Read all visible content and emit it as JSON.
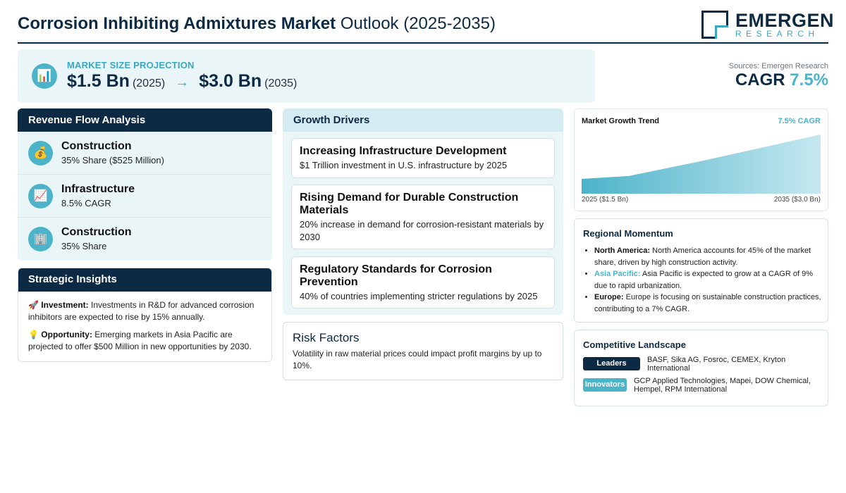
{
  "header": {
    "title_bold": "Corrosion Inhibiting Admixtures Market",
    "title_rest": "Outlook (2025-2035)",
    "logo_word": "EMERGEN",
    "logo_sub": "RESEARCH"
  },
  "projection": {
    "label": "MARKET SIZE PROJECTION",
    "start_value": "$1.5 Bn",
    "start_year": "(2025)",
    "arrow": "→",
    "end_value": "$3.0 Bn",
    "end_year": "(2035)",
    "icon": "bar-chart-icon"
  },
  "sources": "Sources: Emergen Research",
  "cagr": {
    "label": "CAGR",
    "value": "7.5%"
  },
  "revenue": {
    "title": "Revenue Flow Analysis",
    "items": [
      {
        "name": "Construction",
        "sub": "35% Share ($525 Million)",
        "icon": "money-bag-icon",
        "glyph": "💰"
      },
      {
        "name": "Infrastructure",
        "sub": "8.5% CAGR",
        "icon": "chart-up-icon",
        "glyph": "📈"
      },
      {
        "name": "Construction",
        "sub": "35% Share",
        "icon": "building-icon",
        "glyph": "🏢"
      }
    ]
  },
  "insights": {
    "title": "Strategic Insights",
    "items": [
      {
        "glyph": "🚀",
        "label": "Investment:",
        "text": "Investments in R&D for advanced corrosion inhibitors are expected to rise by 15% annually."
      },
      {
        "glyph": "💡",
        "label": "Opportunity:",
        "text": "Emerging markets in Asia Pacific are projected to offer $500 Million in new opportunities by 2030."
      }
    ]
  },
  "drivers": {
    "title": "Growth Drivers",
    "items": [
      {
        "title": "Increasing Infrastructure Development",
        "desc": "$1 Trillion investment in U.S. infrastructure by 2025"
      },
      {
        "title": "Rising Demand for Durable Construction Materials",
        "desc": "20% increase in demand for corrosion-resistant materials by 2030"
      },
      {
        "title": "Regulatory Standards for Corrosion Prevention",
        "desc": "40% of countries implementing stricter regulations by 2025"
      }
    ]
  },
  "risk": {
    "title": "Risk Factors",
    "desc": "Volatility in raw material prices could impact profit margins by up to 10%."
  },
  "trend": {
    "title": "Market Growth Trend",
    "cagr_label": "7.5% CAGR",
    "start_label": "2025 ($1.5 Bn)",
    "end_label": "2035 ($3.0 Bn)"
  },
  "chart_data": {
    "type": "area",
    "x": [
      2025,
      2027,
      2030,
      2035
    ],
    "values": [
      1.5,
      1.6,
      2.1,
      3.0
    ],
    "title": "Market Growth Trend",
    "xlabel": "",
    "ylabel": "",
    "ylim": [
      1.0,
      3.0
    ],
    "grid": false,
    "color": "#4cb3c9"
  },
  "regional": {
    "title": "Regional Momentum",
    "items": [
      {
        "region": "North America:",
        "text": "North America accounts for 45% of the market share, driven by high construction activity.",
        "highlight": false
      },
      {
        "region": "Asia Pacific:",
        "text": "Asia Pacific is expected to grow at a CAGR of 9% due to rapid urbanization.",
        "highlight": true
      },
      {
        "region": "Europe:",
        "text": "Europe is focusing on sustainable construction practices, contributing to a 7% CAGR.",
        "highlight": false
      }
    ]
  },
  "competitive": {
    "title": "Competitive Landscape",
    "leaders_label": "Leaders",
    "leaders": "BASF, Sika AG, Fosroc, CEMEX, Kryton International",
    "innovators_label": "Innovators",
    "innovators": "GCP Applied Technologies, Mapei, DOW Chemical, Hempel, RPM International"
  },
  "colors": {
    "navy": "#0d2a44",
    "accent": "#4cb3c9",
    "panel": "#eaf5f8"
  }
}
